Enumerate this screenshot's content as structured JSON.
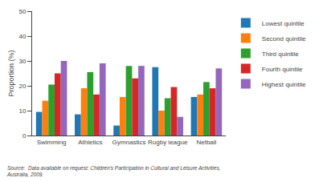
{
  "chart_data": {
    "type": "bar",
    "categories": [
      "Swimming",
      "Athletics",
      "Gymnastics",
      "Rugby league",
      "Netball"
    ],
    "series": [
      {
        "name": "Lowest quintile",
        "values": [
          9.5,
          8.5,
          4,
          27.5,
          15.5
        ]
      },
      {
        "name": "Second quintile",
        "values": [
          14,
          19,
          15.5,
          10,
          16.5
        ]
      },
      {
        "name": "Third quintile",
        "values": [
          20.5,
          25.5,
          28,
          15,
          21.5
        ]
      },
      {
        "name": "Fourth quintile",
        "values": [
          25,
          16.5,
          23,
          19.5,
          19
        ]
      },
      {
        "name": "Highest quintile",
        "values": [
          30,
          29,
          28,
          7.5,
          27
        ]
      }
    ],
    "ylabel": "Proportion (%)",
    "ylim": [
      0,
      50
    ],
    "yticks": [
      0,
      10,
      20,
      30,
      40,
      50
    ],
    "grid": false,
    "legend": "right",
    "annotations": [
      "Source:  Data available on request: Children's Participation in Cultural and Leisure Activities,",
      "Australia, 2009."
    ]
  }
}
